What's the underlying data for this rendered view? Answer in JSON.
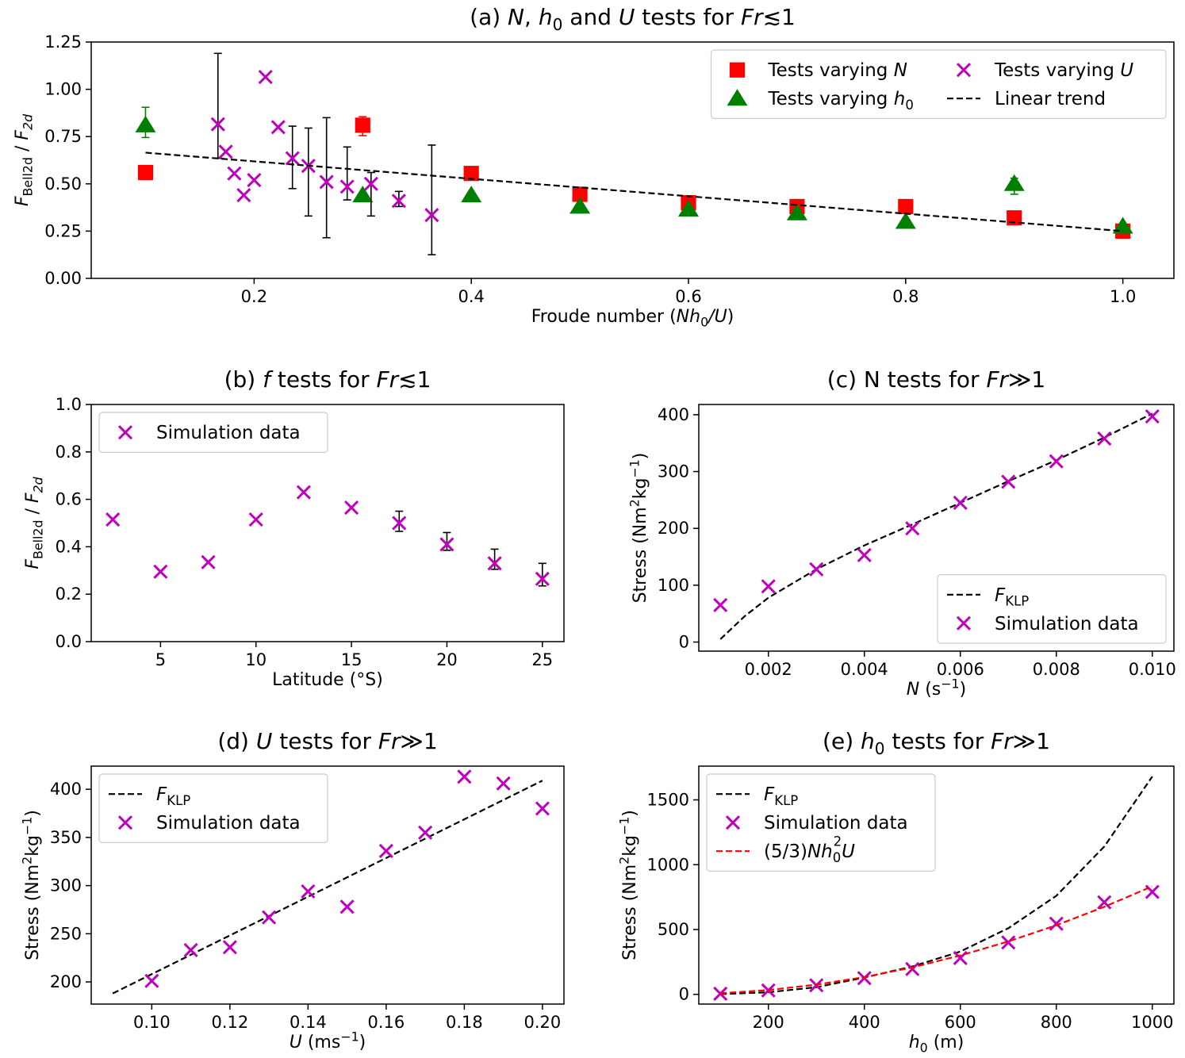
{
  "chart_data": [
    {
      "id": "a",
      "type": "scatter",
      "title": "(a) N, h0 and U tests for Fr≲1",
      "title_parts": [
        [
          "(a) ",
          ""
        ],
        [
          "N",
          "i"
        ],
        [
          ", ",
          ""
        ],
        [
          "h",
          "i"
        ],
        [
          "0",
          "sub"
        ],
        [
          " and ",
          ""
        ],
        [
          "U",
          "i"
        ],
        [
          " tests for ",
          ""
        ],
        [
          "Fr",
          "i"
        ],
        [
          "≲1",
          ""
        ]
      ],
      "xlabel": "Froude number (Nh0/U)",
      "xlabel_parts": [
        [
          "Froude number (",
          ""
        ],
        [
          "Nh",
          "i"
        ],
        [
          "0",
          "sub"
        ],
        [
          "/",
          "i"
        ],
        [
          "U",
          "i"
        ],
        [
          ")",
          ""
        ]
      ],
      "ylabel": "FBell2d / F2d",
      "ylabel_parts": [
        [
          "F",
          "i"
        ],
        [
          "Bell2d",
          "sub"
        ],
        [
          " / ",
          ""
        ],
        [
          "F",
          "i"
        ],
        [
          "2d",
          "subi"
        ]
      ],
      "xlim": [
        0.05,
        1.047
      ],
      "ylim": [
        0.0,
        1.25
      ],
      "xticks": [
        0.2,
        0.4,
        0.6,
        0.8,
        1.0
      ],
      "xtick_labels": [
        "0.2",
        "0.4",
        "0.6",
        "0.8",
        "1.0"
      ],
      "yticks": [
        0.0,
        0.25,
        0.5,
        0.75,
        1.0,
        1.25
      ],
      "ytick_labels": [
        "0.00",
        "0.25",
        "0.50",
        "0.75",
        "1.00",
        "1.25"
      ],
      "legend_position": "top-right",
      "legend_columns": 2,
      "series": [
        {
          "name": "Tests varying N",
          "name_parts": [
            [
              "Tests varying ",
              ""
            ],
            [
              "N",
              "i"
            ]
          ],
          "marker": "square",
          "color": "#ff0000",
          "x": [
            0.1,
            0.3,
            0.4,
            0.5,
            0.6,
            0.7,
            0.8,
            0.9,
            1.0
          ],
          "y": [
            0.56,
            0.81,
            0.555,
            0.445,
            0.4,
            0.38,
            0.38,
            0.32,
            0.25
          ],
          "err": [
            null,
            [
              0.755,
              0.855
            ],
            null,
            null,
            null,
            null,
            null,
            null,
            null
          ]
        },
        {
          "name": "Tests varying h0",
          "name_parts": [
            [
              "Tests varying ",
              ""
            ],
            [
              "h",
              "i"
            ],
            [
              "0",
              "sub"
            ]
          ],
          "marker": "triangle",
          "color": "#008000",
          "x": [
            0.1,
            0.3,
            0.4,
            0.5,
            0.6,
            0.7,
            0.8,
            0.9,
            1.0
          ],
          "y": [
            0.81,
            0.44,
            0.44,
            0.38,
            0.365,
            0.345,
            0.3,
            0.5,
            0.275
          ],
          "err": [
            [
              0.745,
              0.905
            ],
            null,
            null,
            null,
            null,
            null,
            null,
            [
              0.445,
              0.53
            ],
            null
          ]
        },
        {
          "name": "Tests varying U",
          "name_parts": [
            [
              "Tests varying ",
              ""
            ],
            [
              "U",
              "i"
            ]
          ],
          "marker": "x",
          "color": "#bf00bf",
          "x": [
            0.1667,
            0.1739,
            0.1818,
            0.1905,
            0.2,
            0.2105,
            0.2222,
            0.2353,
            0.25,
            0.2667,
            0.2857,
            0.3077,
            0.3333,
            0.3636
          ],
          "y": [
            0.815,
            0.67,
            0.555,
            0.44,
            0.52,
            1.065,
            0.8,
            0.635,
            0.595,
            0.51,
            0.485,
            0.5,
            0.41,
            0.335
          ],
          "err": [
            [
              0.635,
              1.19
            ],
            null,
            null,
            null,
            null,
            null,
            null,
            [
              0.475,
              0.805
            ],
            [
              0.33,
              0.795
            ],
            [
              0.215,
              0.85
            ],
            [
              0.415,
              0.695
            ],
            [
              0.33,
              0.56
            ],
            [
              0.38,
              0.46
            ],
            [
              0.125,
              0.705
            ]
          ]
        },
        {
          "name": "Linear trend",
          "marker": "dashed-line",
          "color": "#000000",
          "x": [
            0.1,
            1.0
          ],
          "y": [
            0.665,
            0.25
          ]
        }
      ]
    },
    {
      "id": "b",
      "type": "scatter",
      "title": "(b) f tests for Fr≲1",
      "title_parts": [
        [
          "(b) ",
          ""
        ],
        [
          "f",
          "i"
        ],
        [
          " tests for ",
          ""
        ],
        [
          "Fr",
          "i"
        ],
        [
          "≲1",
          ""
        ]
      ],
      "xlabel": "Latitude (°S)",
      "xlabel_parts": [
        [
          "Latitude (°S)",
          ""
        ]
      ],
      "ylabel": "FBell2d / F2d",
      "ylabel_parts": [
        [
          "F",
          "i"
        ],
        [
          "Bell2d",
          "sub"
        ],
        [
          " / ",
          ""
        ],
        [
          "F",
          "i"
        ],
        [
          "2d",
          "subi"
        ]
      ],
      "xlim": [
        1.37,
        26.13
      ],
      "ylim": [
        0.0,
        1.0
      ],
      "xticks": [
        5,
        10,
        15,
        20,
        25
      ],
      "xtick_labels": [
        "5",
        "10",
        "15",
        "20",
        "25"
      ],
      "yticks": [
        0.0,
        0.2,
        0.4,
        0.6,
        0.8,
        1.0
      ],
      "ytick_labels": [
        "0.0",
        "0.2",
        "0.4",
        "0.6",
        "0.8",
        "1.0"
      ],
      "legend_position": "top-left",
      "legend_columns": 1,
      "series": [
        {
          "name": "Simulation data",
          "marker": "x",
          "color": "#bf00bf",
          "x": [
            2.5,
            5,
            7.5,
            10,
            12.5,
            15,
            17.5,
            20,
            22.5,
            25
          ],
          "y": [
            0.515,
            0.295,
            0.335,
            0.515,
            0.63,
            0.565,
            0.5,
            0.41,
            0.33,
            0.265
          ],
          "err": [
            null,
            null,
            null,
            null,
            null,
            null,
            [
              0.465,
              0.55
            ],
            [
              0.385,
              0.46
            ],
            [
              0.305,
              0.39
            ],
            [
              0.235,
              0.33
            ]
          ]
        }
      ]
    },
    {
      "id": "c",
      "type": "scatter",
      "title": "(c) N tests for Fr≫1",
      "title_parts": [
        [
          "(c) N tests for ",
          ""
        ],
        [
          "Fr",
          "i"
        ],
        [
          "≫1",
          ""
        ]
      ],
      "xlabel": "N (s⁻¹)",
      "xlabel_parts": [
        [
          "N",
          "i"
        ],
        [
          " (s",
          ""
        ],
        [
          "−1",
          "sup"
        ],
        [
          ")",
          ""
        ]
      ],
      "ylabel": "Stress (Nm²kg⁻¹)",
      "ylabel_parts": [
        [
          "Stress (Nm",
          ""
        ],
        [
          "2",
          "sup"
        ],
        [
          "kg",
          ""
        ],
        [
          "−1",
          "sup"
        ],
        [
          ")",
          ""
        ]
      ],
      "xlim": [
        0.00055,
        0.01045
      ],
      "ylim": [
        -16,
        418
      ],
      "xticks": [
        0.002,
        0.004,
        0.006,
        0.008,
        0.01
      ],
      "xtick_labels": [
        "0.002",
        "0.004",
        "0.006",
        "0.008",
        "0.010"
      ],
      "yticks": [
        0,
        100,
        200,
        300,
        400
      ],
      "ytick_labels": [
        "0",
        "100",
        "200",
        "300",
        "400"
      ],
      "legend_position": "bottom-right",
      "legend_columns": 1,
      "series": [
        {
          "name": "FKLP",
          "name_parts": [
            [
              "F",
              "i"
            ],
            [
              "KLP",
              "sub"
            ]
          ],
          "marker": "dashed-line",
          "color": "#000000",
          "x": [
            0.001,
            0.0015,
            0.002,
            0.003,
            0.004,
            0.005,
            0.006,
            0.007,
            0.008,
            0.009,
            0.01
          ],
          "y": [
            5,
            45,
            78,
            128,
            170,
            207,
            245,
            283,
            320,
            360,
            402
          ]
        },
        {
          "name": "Simulation data",
          "marker": "x",
          "color": "#bf00bf",
          "x": [
            0.001,
            0.002,
            0.003,
            0.004,
            0.005,
            0.006,
            0.007,
            0.008,
            0.009,
            0.01
          ],
          "y": [
            65,
            98,
            128,
            153,
            200,
            245,
            282,
            318,
            358,
            397
          ]
        }
      ]
    },
    {
      "id": "d",
      "type": "scatter",
      "title": "(d) U tests for Fr≫1",
      "title_parts": [
        [
          "(d) ",
          ""
        ],
        [
          "U",
          "i"
        ],
        [
          " tests for ",
          ""
        ],
        [
          "Fr",
          "i"
        ],
        [
          "≫1",
          ""
        ]
      ],
      "xlabel": "U (ms⁻¹)",
      "xlabel_parts": [
        [
          "U",
          "i"
        ],
        [
          " (ms",
          ""
        ],
        [
          "−1",
          "sup"
        ],
        [
          ")",
          ""
        ]
      ],
      "ylabel": "Stress (Nm²kg⁻¹)",
      "ylabel_parts": [
        [
          "Stress (Nm",
          ""
        ],
        [
          "2",
          "sup"
        ],
        [
          "kg",
          ""
        ],
        [
          "−1",
          "sup"
        ],
        [
          ")",
          ""
        ]
      ],
      "xlim": [
        0.0845,
        0.2055
      ],
      "ylim": [
        177,
        424
      ],
      "xticks": [
        0.1,
        0.12,
        0.14,
        0.16,
        0.18,
        0.2
      ],
      "xtick_labels": [
        "0.10",
        "0.12",
        "0.14",
        "0.16",
        "0.18",
        "0.20"
      ],
      "yticks": [
        200,
        250,
        300,
        350,
        400
      ],
      "ytick_labels": [
        "200",
        "250",
        "300",
        "350",
        "400"
      ],
      "legend_position": "top-left",
      "legend_columns": 1,
      "series": [
        {
          "name": "FKLP",
          "name_parts": [
            [
              "F",
              "i"
            ],
            [
              "KLP",
              "sub"
            ]
          ],
          "marker": "dashed-line",
          "color": "#000000",
          "x": [
            0.09,
            0.2
          ],
          "y": [
            188,
            409
          ]
        },
        {
          "name": "Simulation data",
          "marker": "x",
          "color": "#bf00bf",
          "x": [
            0.1,
            0.11,
            0.12,
            0.13,
            0.14,
            0.15,
            0.16,
            0.17,
            0.18,
            0.19,
            0.2
          ],
          "y": [
            201,
            233,
            236,
            267,
            294,
            278,
            336,
            355,
            413,
            406,
            380
          ]
        }
      ]
    },
    {
      "id": "e",
      "type": "scatter",
      "title": "(e) h0 tests for Fr≫1",
      "title_parts": [
        [
          "(e) ",
          ""
        ],
        [
          "h",
          "i"
        ],
        [
          "0",
          "sub"
        ],
        [
          " tests for ",
          ""
        ],
        [
          "Fr",
          "i"
        ],
        [
          "≫1",
          ""
        ]
      ],
      "xlabel": "h0 (m)",
      "xlabel_parts": [
        [
          "h",
          "i"
        ],
        [
          "0",
          "sub"
        ],
        [
          " (m)",
          ""
        ]
      ],
      "ylabel": "Stress (Nm²kg⁻¹)",
      "ylabel_parts": [
        [
          "Stress (Nm",
          ""
        ],
        [
          "2",
          "sup"
        ],
        [
          "kg",
          ""
        ],
        [
          "−1",
          "sup"
        ],
        [
          ")",
          ""
        ]
      ],
      "xlim": [
        55,
        1045
      ],
      "ylim": [
        -75,
        1760
      ],
      "xticks": [
        200,
        400,
        600,
        800,
        1000
      ],
      "xtick_labels": [
        "200",
        "400",
        "600",
        "800",
        "1000"
      ],
      "yticks": [
        0,
        500,
        1000,
        1500
      ],
      "ytick_labels": [
        "0",
        "500",
        "1000",
        "1500"
      ],
      "legend_position": "top-left",
      "legend_columns": 1,
      "series": [
        {
          "name": "FKLP",
          "name_parts": [
            [
              "F",
              "i"
            ],
            [
              "KLP",
              "sub"
            ]
          ],
          "marker": "dashed-line",
          "color": "#000000",
          "x": [
            100,
            200,
            300,
            400,
            500,
            600,
            700,
            800,
            900,
            1000
          ],
          "y": [
            2,
            16,
            55,
            130,
            215,
            330,
            510,
            760,
            1140,
            1680
          ]
        },
        {
          "name": "Simulation data",
          "marker": "x",
          "color": "#bf00bf",
          "x": [
            100,
            200,
            300,
            400,
            500,
            600,
            700,
            800,
            900,
            1000
          ],
          "y": [
            5,
            30,
            70,
            125,
            195,
            280,
            400,
            545,
            710,
            790
          ]
        },
        {
          "name": "(5/3)Nh0²U",
          "name_parts": [
            [
              "(5/3)",
              ""
            ],
            [
              "Nh",
              "i"
            ],
            [
              "0",
              "sub"
            ],
            [
              "2",
              "supadj"
            ],
            [
              "U",
              "i"
            ]
          ],
          "marker": "dashed-line",
          "color": "#ff0000",
          "x": [
            100,
            200,
            300,
            400,
            500,
            600,
            700,
            800,
            900,
            1000
          ],
          "y": [
            8,
            33,
            75,
            133,
            208,
            300,
            408,
            533,
            675,
            833
          ]
        }
      ]
    }
  ]
}
